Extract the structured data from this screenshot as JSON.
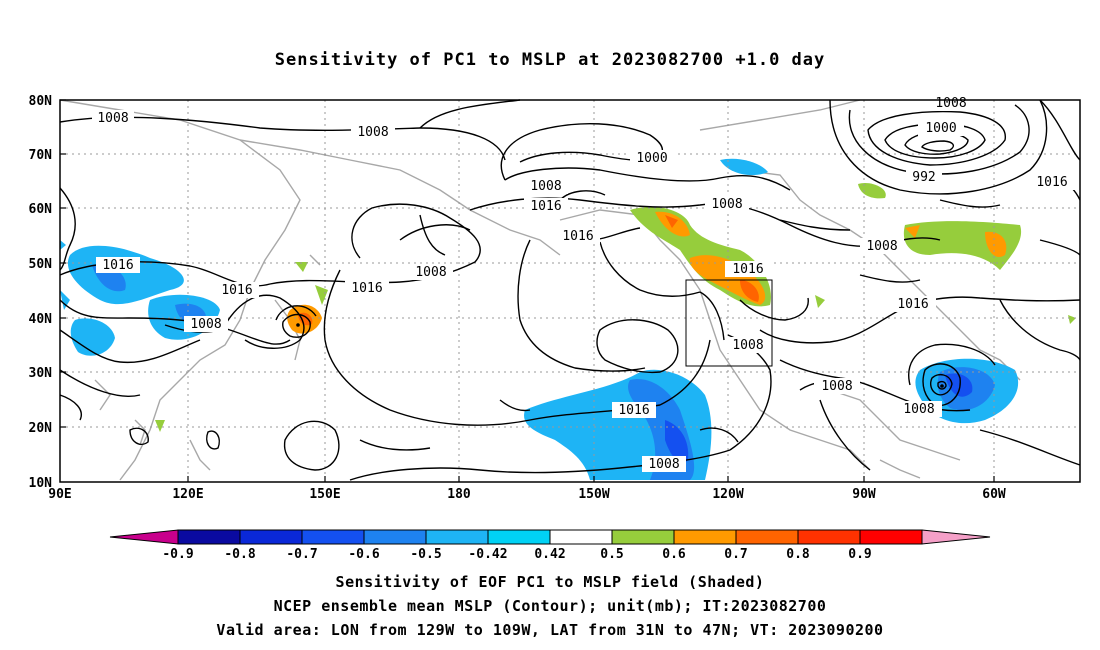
{
  "title": "Sensitivity of PC1 to MSLP at 2023082700 +1.0 day",
  "axes": {
    "lat_labels": [
      "80N",
      "70N",
      "60N",
      "50N",
      "40N",
      "30N",
      "20N",
      "10N"
    ],
    "lon_labels": [
      "90E",
      "120E",
      "150E",
      "180",
      "150W",
      "120W",
      "90W",
      "60W"
    ]
  },
  "colorbar": {
    "ticks": [
      "-0.9",
      "-0.8",
      "-0.7",
      "-0.6",
      "-0.5",
      "-0.42",
      "0.42",
      "0.5",
      "0.6",
      "0.7",
      "0.8",
      "0.9"
    ],
    "colors": [
      "#c8008c",
      "#0a0aa0",
      "#0a28d8",
      "#1450f0",
      "#1e82f0",
      "#1eb4f5",
      "#00d2f5",
      "#ffffff",
      "#96cd3c",
      "#ff9a00",
      "#ff6400",
      "#ff3200",
      "#ff0000",
      "#f5a0c8"
    ]
  },
  "contour_labels": [
    {
      "text": "1008"
    },
    {
      "text": "1008"
    },
    {
      "text": "1016"
    },
    {
      "text": "1016"
    },
    {
      "text": "1008"
    },
    {
      "text": "1016"
    },
    {
      "text": "1008"
    },
    {
      "text": "1016"
    },
    {
      "text": "1008"
    },
    {
      "text": "1000"
    },
    {
      "text": "1016"
    },
    {
      "text": "1016"
    },
    {
      "text": "1008"
    },
    {
      "text": "1008"
    },
    {
      "text": "1016"
    },
    {
      "text": "1008"
    },
    {
      "text": "1008"
    },
    {
      "text": "1000"
    },
    {
      "text": "992"
    },
    {
      "text": "1016"
    },
    {
      "text": "1008"
    },
    {
      "text": "1016"
    },
    {
      "text": "1008"
    },
    {
      "text": "1008"
    },
    {
      "text": "1008"
    }
  ],
  "captions": {
    "line1": "Sensitivity of EOF PC1 to MSLP field (Shaded)",
    "line2": "NCEP ensemble mean MSLP (Contour); unit(mb); IT:2023082700",
    "line3": "Valid area: LON from 129W to 109W, LAT from 31N to 47N; VT: 2023090200"
  }
}
